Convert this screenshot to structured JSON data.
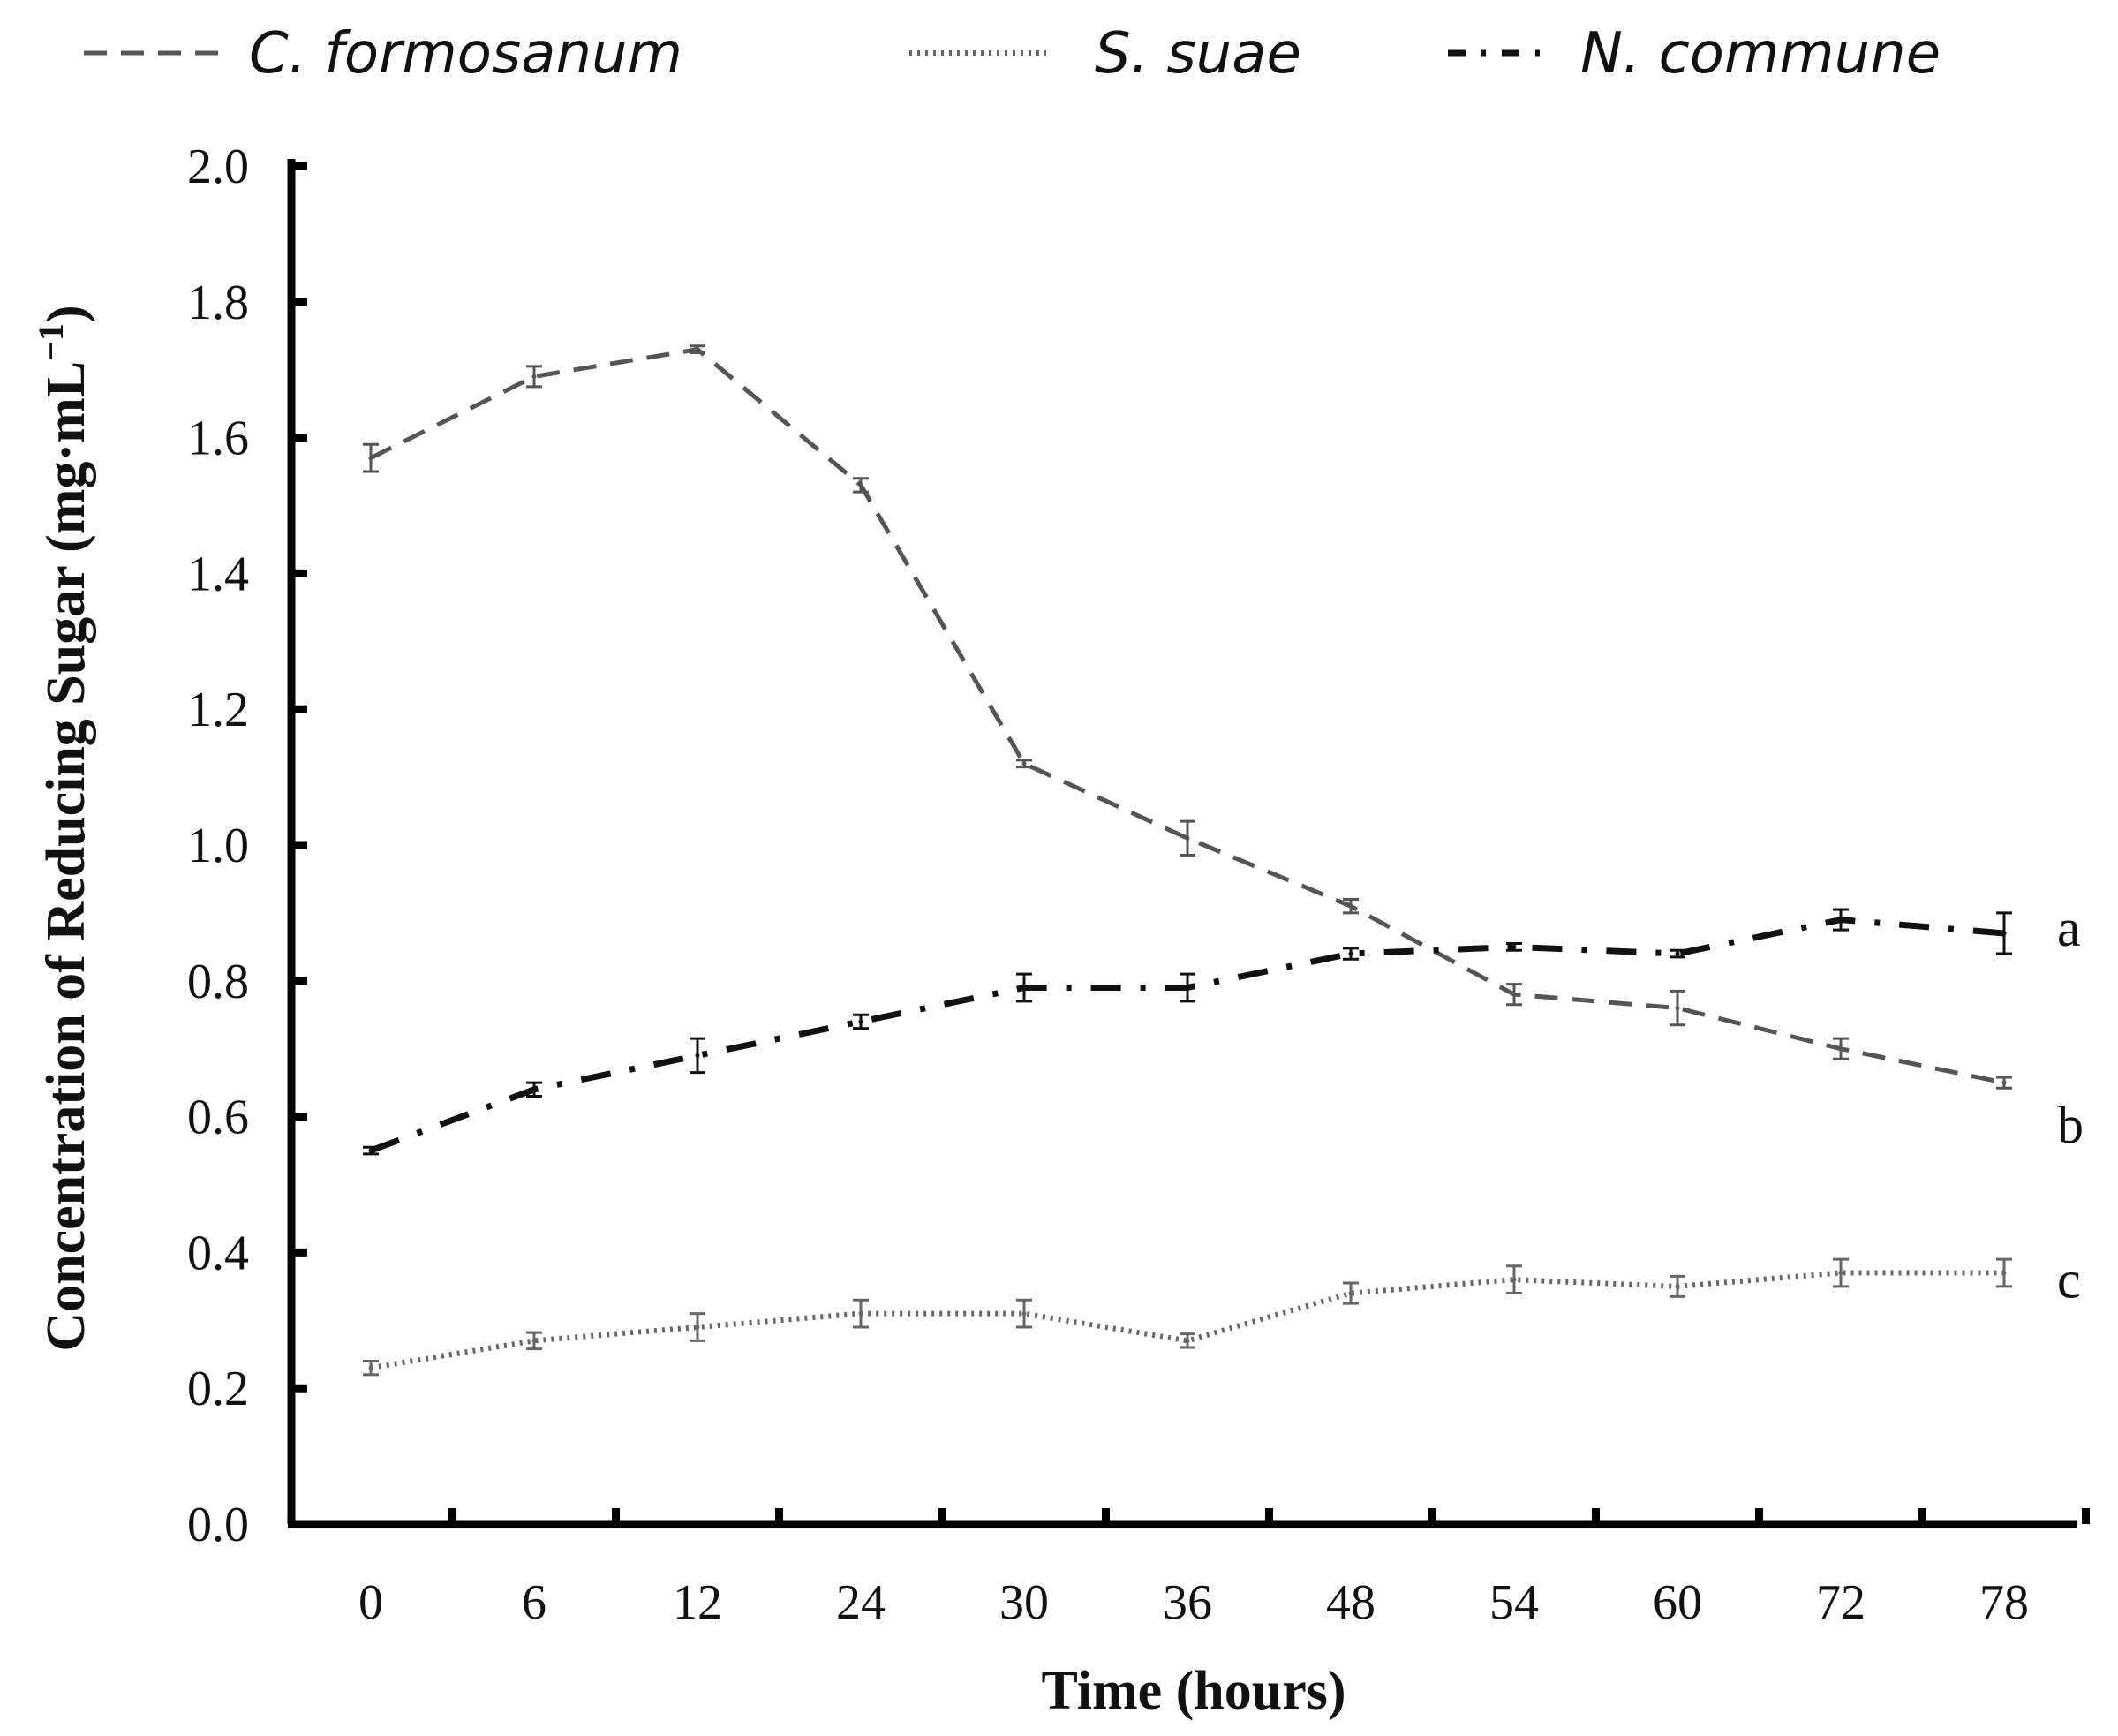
{
  "chart_data": {
    "type": "line",
    "title": "",
    "xlabel": "Time (hours)",
    "ylabel": "Concentration of Reducing Sugar (mg·mL",
    "ylabel_sup": "−1",
    "ylabel_close": ")",
    "categories": [
      "0",
      "6",
      "12",
      "24",
      "30",
      "36",
      "48",
      "54",
      "60",
      "72",
      "78"
    ],
    "ylim": [
      0,
      2.0
    ],
    "yticks": [
      "0.0",
      "0.2",
      "0.4",
      "0.6",
      "0.8",
      "1.0",
      "1.2",
      "1.4",
      "1.6",
      "1.8",
      "2.0"
    ],
    "legend_position": "top",
    "series": [
      {
        "name": "C. formosanum",
        "style": "dashed",
        "color": "#555555",
        "label": "b",
        "values": [
          1.57,
          1.69,
          1.73,
          1.53,
          1.12,
          1.01,
          0.91,
          0.78,
          0.76,
          0.7,
          0.65
        ],
        "errors": [
          0.02,
          0.015,
          0.005,
          0.01,
          0.005,
          0.025,
          0.01,
          0.015,
          0.025,
          0.015,
          0.008
        ]
      },
      {
        "name": "S. suae",
        "style": "dotted",
        "color": "#666666",
        "label": "c",
        "values": [
          0.23,
          0.27,
          0.29,
          0.31,
          0.31,
          0.27,
          0.34,
          0.36,
          0.35,
          0.37,
          0.37
        ],
        "errors": [
          0.01,
          0.012,
          0.02,
          0.02,
          0.02,
          0.01,
          0.015,
          0.02,
          0.015,
          0.02,
          0.02
        ]
      },
      {
        "name": "N. commune",
        "style": "dashdot",
        "color": "#111111",
        "label": "a",
        "values": [
          0.55,
          0.64,
          0.69,
          0.74,
          0.79,
          0.79,
          0.84,
          0.85,
          0.84,
          0.89,
          0.87
        ],
        "errors": [
          0.005,
          0.01,
          0.025,
          0.01,
          0.02,
          0.02,
          0.008,
          0.005,
          0.005,
          0.015,
          0.03
        ]
      }
    ]
  }
}
